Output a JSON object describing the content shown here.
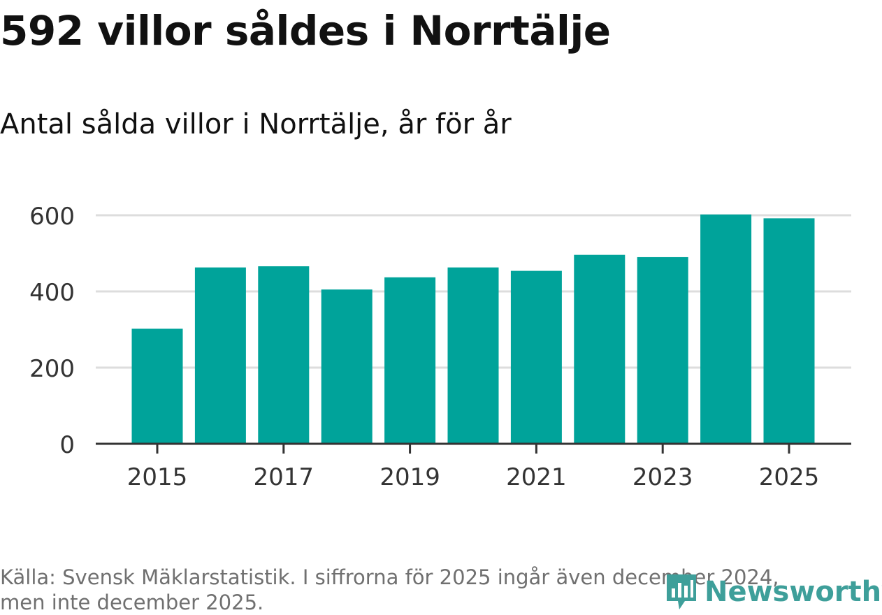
{
  "header": {
    "title": "592 villor såldes i Norrtälje",
    "subtitle": "Antal sålda villor i Norrtälje, år för år"
  },
  "footer": {
    "source_line1": "Källa: Svensk Mäklarstatistik. I siffrorna för 2025 ingår även december 2024,",
    "source_line2": "men inte december 2025.",
    "brand": "Newsworthy"
  },
  "colors": {
    "bar": "#00a39a",
    "grid": "#dddddd",
    "axis": "#333333",
    "brand": "#3e9f9a"
  },
  "chart_data": {
    "type": "bar",
    "title": "Antal sålda villor i Norrtälje, år för år",
    "xlabel": "",
    "ylabel": "",
    "categories": [
      "2015",
      "2016",
      "2017",
      "2018",
      "2019",
      "2020",
      "2021",
      "2022",
      "2023",
      "2024",
      "2025"
    ],
    "values": [
      302,
      463,
      466,
      405,
      437,
      463,
      454,
      496,
      490,
      602,
      592
    ],
    "ylim": [
      0,
      600
    ],
    "yticks": [
      "0",
      "200",
      "400",
      "600"
    ],
    "xticks": [
      "2015",
      "2017",
      "2019",
      "2021",
      "2023",
      "2025"
    ],
    "grid": true
  }
}
